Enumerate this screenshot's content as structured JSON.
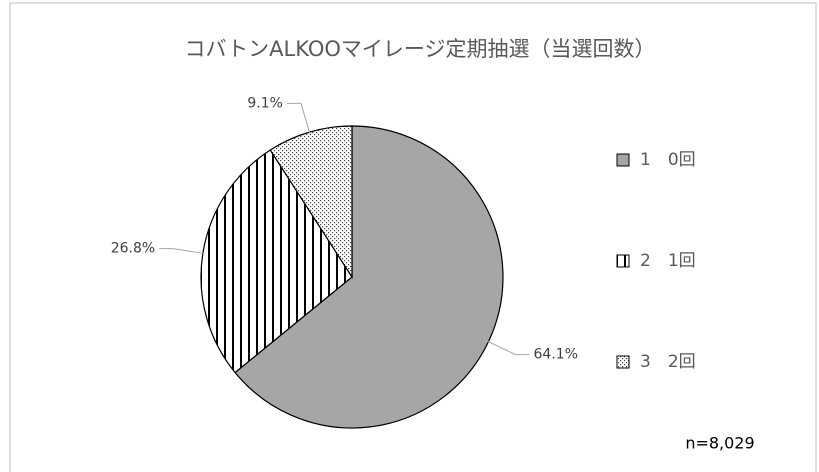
{
  "chart_data": {
    "type": "pie",
    "title": "コバトンALKOOマイレージ定期抽選（当選回数）",
    "categories": [
      "1　0回",
      "2　1回",
      "3　2回"
    ],
    "values": [
      64.1,
      26.8,
      9.1
    ],
    "value_labels": [
      "64.1%",
      "26.8%",
      "9.1%"
    ],
    "colors": [
      "#a6a6a6",
      "#000000",
      "#000000"
    ],
    "fill_patterns": [
      "solid",
      "vertical-stripes",
      "dots"
    ],
    "legend": "right",
    "annotation": "n=8,029"
  }
}
